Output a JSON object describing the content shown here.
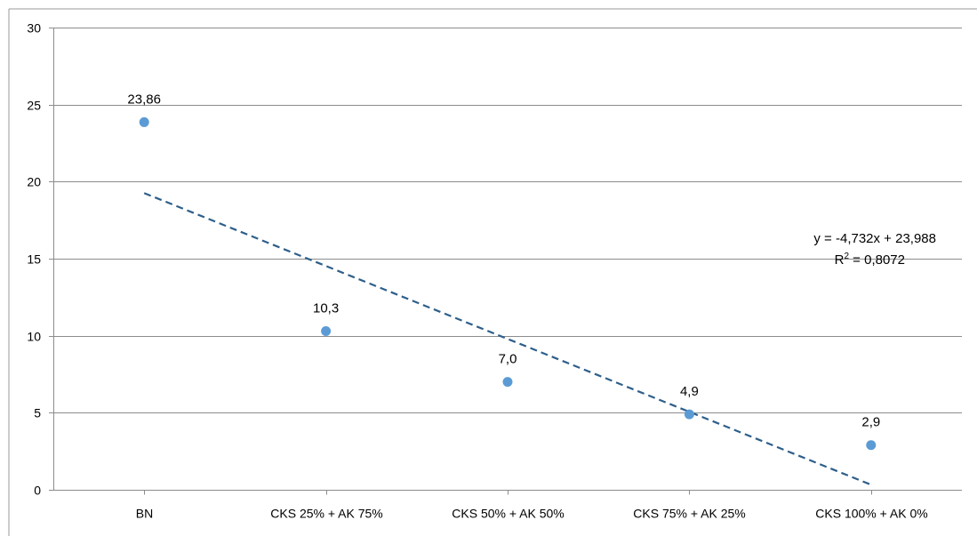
{
  "chart_data": {
    "type": "scatter",
    "categories": [
      "BN",
      "CKS 25% + AK 75%",
      "CKS 50% + AK 50%",
      "CKS 75% + AK 25%",
      "CKS 100% + AK 0%"
    ],
    "x": [
      1,
      2,
      3,
      4,
      5
    ],
    "values": [
      23.86,
      10.3,
      7.0,
      4.9,
      2.9
    ],
    "data_labels": [
      "23,86",
      "10,3",
      "7,0",
      "4,9",
      "2,9"
    ],
    "ylim": [
      0,
      30
    ],
    "y_ticks": [
      0,
      5,
      10,
      15,
      20,
      25,
      30
    ],
    "y_tick_labels": [
      "0",
      "5",
      "10",
      "15",
      "20",
      "25",
      "30"
    ],
    "grid": true,
    "legend": "none",
    "title": "",
    "xlabel": "",
    "ylabel": "",
    "marker_color": "#5b9bd5",
    "trendline": {
      "type": "linear",
      "slope": -4.732,
      "intercept": 23.988,
      "color": "#2e5f8a",
      "style": "dashed",
      "equation_text": "y = -4,732x + 23,988",
      "r2_prefix": "R",
      "r2_superscript": "2",
      "r2_value_text": " = 0,8072"
    }
  }
}
